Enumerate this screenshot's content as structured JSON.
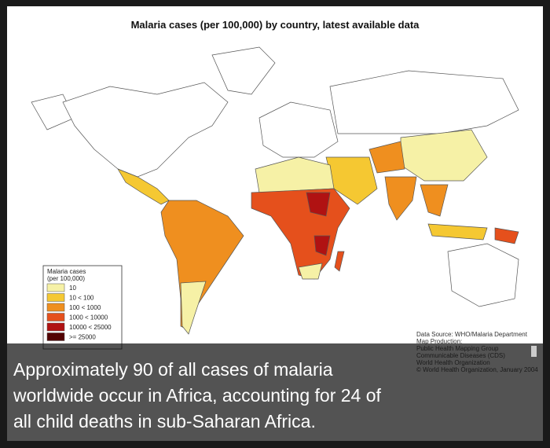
{
  "title": "Malaria cases (per 100,000) by country, latest available data",
  "legend": {
    "title": [
      "Malaria cases",
      "(per 100,000)"
    ],
    "items": [
      {
        "label": "10",
        "color": "#f6f1a6"
      },
      {
        "label": "10 < 100",
        "color": "#f5c832"
      },
      {
        "label": "100 < 1000",
        "color": "#ef8f1f"
      },
      {
        "label": "1000 < 10000",
        "color": "#e5501c"
      },
      {
        "label": "10000 < 25000",
        "color": "#b01212"
      },
      {
        "label": ">= 25000",
        "color": "#520202"
      }
    ]
  },
  "source": [
    "Data Source: WHO/Malaria Department",
    "Map Production:",
    "Public Health Mapping Group",
    "Communicable Diseases (CDS)",
    "World Health Organization",
    "© World Health Organization, January 2004"
  ],
  "caption": [
    "Approximately 90 of all cases of malaria",
    "worldwide occur in Africa, accounting for 24 of",
    "all child deaths in sub-Saharan Africa."
  ]
}
